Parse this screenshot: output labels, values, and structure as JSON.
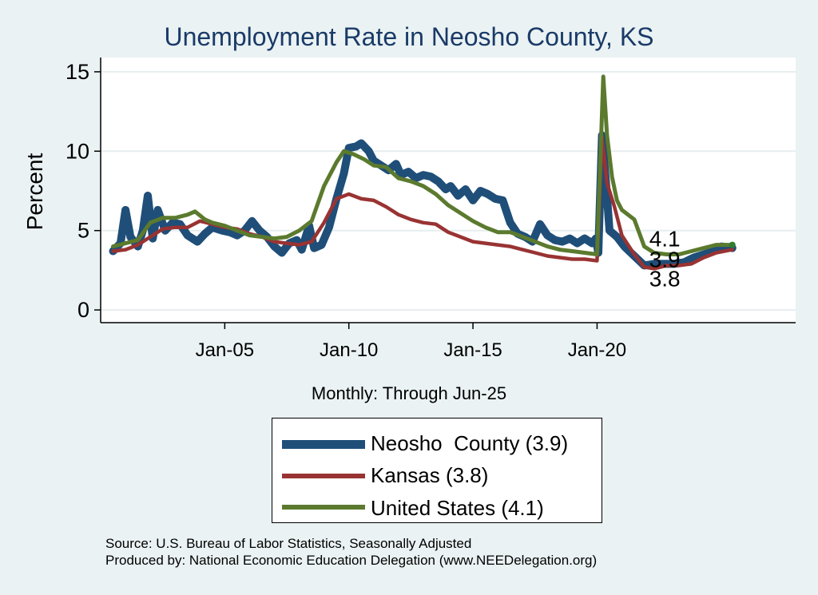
{
  "chart_data": {
    "type": "line",
    "title": "Unemployment Rate in Neosho  County, KS",
    "xlabel": "Monthly: Through Jun-25",
    "ylabel": "Percent",
    "ylim": [
      -0.8,
      15.9
    ],
    "xlim": [
      2000.0,
      2028.0
    ],
    "yticks": [
      0,
      5,
      10,
      15
    ],
    "xticks": [
      {
        "value": 2005.0,
        "label": "Jan-05"
      },
      {
        "value": 2010.0,
        "label": "Jan-10"
      },
      {
        "value": 2015.0,
        "label": "Jan-15"
      },
      {
        "value": 2020.0,
        "label": "Jan-20"
      }
    ],
    "grid": true,
    "series": [
      {
        "name": "Neosho  County",
        "legend_label": "Neosho  County (3.9)",
        "end_label": "3.9",
        "color": "#1f4e79",
        "points": [
          [
            2000.5,
            3.7
          ],
          [
            2000.8,
            4.2
          ],
          [
            2001.0,
            6.3
          ],
          [
            2001.2,
            4.6
          ],
          [
            2001.5,
            4.0
          ],
          [
            2001.7,
            5.0
          ],
          [
            2001.9,
            7.2
          ],
          [
            2002.1,
            4.5
          ],
          [
            2002.3,
            6.3
          ],
          [
            2002.6,
            5.0
          ],
          [
            2002.9,
            5.5
          ],
          [
            2003.2,
            5.4
          ],
          [
            2003.5,
            4.7
          ],
          [
            2003.9,
            4.3
          ],
          [
            2004.2,
            4.8
          ],
          [
            2004.5,
            5.2
          ],
          [
            2004.9,
            5.0
          ],
          [
            2005.2,
            4.9
          ],
          [
            2005.5,
            4.7
          ],
          [
            2005.8,
            5.0
          ],
          [
            2006.1,
            5.6
          ],
          [
            2006.4,
            5.0
          ],
          [
            2006.7,
            4.6
          ],
          [
            2007.0,
            4.0
          ],
          [
            2007.3,
            3.6
          ],
          [
            2007.6,
            4.2
          ],
          [
            2007.9,
            4.4
          ],
          [
            2008.1,
            3.8
          ],
          [
            2008.4,
            5.3
          ],
          [
            2008.6,
            3.9
          ],
          [
            2008.9,
            4.1
          ],
          [
            2009.2,
            5.2
          ],
          [
            2009.5,
            7.0
          ],
          [
            2009.8,
            8.6
          ],
          [
            2010.0,
            10.2
          ],
          [
            2010.3,
            10.3
          ],
          [
            2010.5,
            10.5
          ],
          [
            2010.8,
            10.0
          ],
          [
            2011.0,
            9.4
          ],
          [
            2011.3,
            9.1
          ],
          [
            2011.6,
            8.8
          ],
          [
            2011.9,
            9.2
          ],
          [
            2012.1,
            8.5
          ],
          [
            2012.4,
            8.7
          ],
          [
            2012.7,
            8.3
          ],
          [
            2013.0,
            8.5
          ],
          [
            2013.3,
            8.4
          ],
          [
            2013.6,
            8.1
          ],
          [
            2013.9,
            7.6
          ],
          [
            2014.1,
            7.8
          ],
          [
            2014.4,
            7.2
          ],
          [
            2014.7,
            7.6
          ],
          [
            2015.0,
            6.9
          ],
          [
            2015.3,
            7.5
          ],
          [
            2015.6,
            7.3
          ],
          [
            2015.9,
            7.0
          ],
          [
            2016.2,
            6.9
          ],
          [
            2016.5,
            5.5
          ],
          [
            2016.8,
            4.8
          ],
          [
            2017.1,
            4.6
          ],
          [
            2017.4,
            4.3
          ],
          [
            2017.7,
            5.4
          ],
          [
            2018.0,
            4.7
          ],
          [
            2018.3,
            4.4
          ],
          [
            2018.6,
            4.3
          ],
          [
            2018.9,
            4.5
          ],
          [
            2019.2,
            4.2
          ],
          [
            2019.5,
            4.5
          ],
          [
            2019.8,
            4.2
          ],
          [
            2019.95,
            4.5
          ],
          [
            2020.05,
            3.6
          ],
          [
            2020.2,
            11.0
          ],
          [
            2020.35,
            8.2
          ],
          [
            2020.5,
            5.0
          ],
          [
            2020.8,
            4.6
          ],
          [
            2021.1,
            4.0
          ],
          [
            2021.5,
            3.4
          ],
          [
            2021.9,
            2.8
          ],
          [
            2022.3,
            2.9
          ],
          [
            2022.7,
            2.9
          ],
          [
            2023.1,
            2.9
          ],
          [
            2023.5,
            3.0
          ],
          [
            2023.9,
            3.3
          ],
          [
            2024.3,
            3.5
          ],
          [
            2024.7,
            3.7
          ],
          [
            2025.0,
            4.0
          ],
          [
            2025.45,
            3.9
          ]
        ]
      },
      {
        "name": "Kansas",
        "legend_label": "Kansas (3.8)",
        "end_label": "3.8",
        "color": "#993333",
        "points": [
          [
            2000.5,
            3.7
          ],
          [
            2001.0,
            3.8
          ],
          [
            2001.5,
            4.1
          ],
          [
            2002.0,
            4.6
          ],
          [
            2002.5,
            5.1
          ],
          [
            2003.0,
            5.2
          ],
          [
            2003.5,
            5.2
          ],
          [
            2004.0,
            5.6
          ],
          [
            2004.5,
            5.4
          ],
          [
            2005.0,
            5.2
          ],
          [
            2005.5,
            5.1
          ],
          [
            2006.0,
            4.8
          ],
          [
            2006.5,
            4.6
          ],
          [
            2007.0,
            4.3
          ],
          [
            2007.5,
            4.2
          ],
          [
            2008.0,
            4.1
          ],
          [
            2008.5,
            4.3
          ],
          [
            2009.0,
            5.5
          ],
          [
            2009.5,
            7.0
          ],
          [
            2010.0,
            7.3
          ],
          [
            2010.5,
            7.0
          ],
          [
            2011.0,
            6.9
          ],
          [
            2011.5,
            6.5
          ],
          [
            2012.0,
            6.0
          ],
          [
            2012.5,
            5.7
          ],
          [
            2013.0,
            5.5
          ],
          [
            2013.5,
            5.4
          ],
          [
            2014.0,
            4.9
          ],
          [
            2014.5,
            4.6
          ],
          [
            2015.0,
            4.3
          ],
          [
            2015.5,
            4.2
          ],
          [
            2016.0,
            4.1
          ],
          [
            2016.5,
            4.0
          ],
          [
            2017.0,
            3.8
          ],
          [
            2017.5,
            3.6
          ],
          [
            2018.0,
            3.4
          ],
          [
            2018.5,
            3.3
          ],
          [
            2019.0,
            3.2
          ],
          [
            2019.5,
            3.2
          ],
          [
            2020.0,
            3.1
          ],
          [
            2020.2,
            10.9
          ],
          [
            2020.4,
            8.0
          ],
          [
            2020.7,
            6.5
          ],
          [
            2021.0,
            4.7
          ],
          [
            2021.5,
            3.5
          ],
          [
            2021.9,
            2.7
          ],
          [
            2022.3,
            2.6
          ],
          [
            2022.8,
            2.8
          ],
          [
            2023.3,
            2.8
          ],
          [
            2023.8,
            2.9
          ],
          [
            2024.3,
            3.3
          ],
          [
            2024.8,
            3.6
          ],
          [
            2025.45,
            3.8
          ]
        ]
      },
      {
        "name": "United States",
        "legend_label": "United States (4.1)",
        "end_label": "4.1",
        "color": "#5b7a2e",
        "points": [
          [
            2000.5,
            4.0
          ],
          [
            2001.0,
            4.2
          ],
          [
            2001.5,
            4.4
          ],
          [
            2002.0,
            5.5
          ],
          [
            2002.5,
            5.8
          ],
          [
            2003.0,
            5.8
          ],
          [
            2003.5,
            6.0
          ],
          [
            2003.8,
            6.2
          ],
          [
            2004.2,
            5.7
          ],
          [
            2004.5,
            5.5
          ],
          [
            2005.0,
            5.3
          ],
          [
            2005.5,
            5.0
          ],
          [
            2006.0,
            4.7
          ],
          [
            2006.5,
            4.6
          ],
          [
            2007.0,
            4.5
          ],
          [
            2007.5,
            4.6
          ],
          [
            2008.0,
            5.0
          ],
          [
            2008.5,
            5.6
          ],
          [
            2009.0,
            7.8
          ],
          [
            2009.5,
            9.3
          ],
          [
            2009.8,
            10.0
          ],
          [
            2010.2,
            9.8
          ],
          [
            2010.6,
            9.5
          ],
          [
            2011.0,
            9.1
          ],
          [
            2011.5,
            9.0
          ],
          [
            2012.0,
            8.3
          ],
          [
            2012.5,
            8.1
          ],
          [
            2013.0,
            7.8
          ],
          [
            2013.5,
            7.3
          ],
          [
            2014.0,
            6.6
          ],
          [
            2014.5,
            6.1
          ],
          [
            2015.0,
            5.6
          ],
          [
            2015.5,
            5.2
          ],
          [
            2016.0,
            4.9
          ],
          [
            2016.5,
            4.9
          ],
          [
            2017.0,
            4.6
          ],
          [
            2017.5,
            4.3
          ],
          [
            2018.0,
            4.0
          ],
          [
            2018.5,
            3.8
          ],
          [
            2019.0,
            3.7
          ],
          [
            2019.5,
            3.6
          ],
          [
            2020.0,
            3.5
          ],
          [
            2020.25,
            14.7
          ],
          [
            2020.4,
            11.0
          ],
          [
            2020.6,
            8.4
          ],
          [
            2020.8,
            6.9
          ],
          [
            2021.0,
            6.3
          ],
          [
            2021.5,
            5.7
          ],
          [
            2021.9,
            4.0
          ],
          [
            2022.3,
            3.6
          ],
          [
            2022.8,
            3.5
          ],
          [
            2023.3,
            3.5
          ],
          [
            2023.8,
            3.7
          ],
          [
            2024.3,
            3.9
          ],
          [
            2024.8,
            4.1
          ],
          [
            2025.45,
            4.1
          ]
        ]
      }
    ]
  },
  "source_line1": "Source: U.S. Bureau of Labor Statistics, Seasonally Adjusted",
  "source_line2": "Produced by: National Economic Education Delegation (www.NEEDelegation.org)"
}
